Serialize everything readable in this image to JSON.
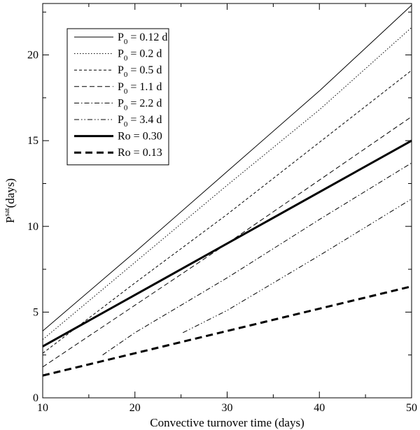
{
  "chart_data": {
    "type": "line",
    "xlabel": "Convective turnover time (days)",
    "ylabel": "P",
    "ylabel_superscript": "sat",
    "ylabel_units": "(days)",
    "xlim": [
      10,
      50
    ],
    "ylim": [
      0,
      23
    ],
    "xticks": [
      10,
      20,
      30,
      40,
      50
    ],
    "yticks": [
      0,
      5,
      10,
      15,
      20
    ],
    "grid": false,
    "legend_position": "top-left",
    "series": [
      {
        "name": "P0 = 0.12 d",
        "legend": {
          "prefix": "P",
          "sub": "0",
          "suffix": " = 0.12 d"
        },
        "style": "solid",
        "weight": "thin",
        "x": [
          10,
          20,
          30,
          40,
          50
        ],
        "y": [
          3.9,
          8.5,
          13.2,
          17.9,
          22.9
        ]
      },
      {
        "name": "P0 = 0.2 d",
        "legend": {
          "prefix": "P",
          "sub": "0",
          "suffix": " = 0.2 d"
        },
        "style": "dotted",
        "weight": "thin",
        "x": [
          10,
          20,
          30,
          40,
          50
        ],
        "y": [
          3.4,
          7.9,
          12.4,
          16.8,
          21.6
        ]
      },
      {
        "name": "P0 = 0.5 d",
        "legend": {
          "prefix": "P",
          "sub": "0",
          "suffix": " = 0.5 d"
        },
        "style": "dashed",
        "weight": "thin",
        "x": [
          10,
          20,
          30,
          40,
          50
        ],
        "y": [
          2.6,
          6.7,
          10.7,
          14.9,
          19.1
        ]
      },
      {
        "name": "P0 = 1.1 d",
        "legend": {
          "prefix": "P",
          "sub": "0",
          "suffix": " = 1.1 d"
        },
        "style": "longdash",
        "weight": "thin",
        "x": [
          10,
          20,
          30,
          40,
          50
        ],
        "y": [
          1.8,
          5.4,
          9.0,
          12.7,
          16.4
        ]
      },
      {
        "name": "P0 = 2.2 d",
        "legend": {
          "prefix": "P",
          "sub": "0",
          "suffix": " = 2.2 d"
        },
        "style": "dashdot",
        "weight": "thin",
        "x": [
          16.5,
          20,
          30,
          40,
          50
        ],
        "y": [
          2.5,
          3.8,
          7.0,
          10.4,
          13.7
        ]
      },
      {
        "name": "P0 = 3.4 d",
        "legend": {
          "prefix": "P",
          "sub": "0",
          "suffix": " = 3.4 d"
        },
        "style": "dashdotdot",
        "weight": "thin",
        "x": [
          25.2,
          30,
          40,
          50
        ],
        "y": [
          3.8,
          5.1,
          8.3,
          11.6
        ]
      },
      {
        "name": "Ro = 0.30",
        "legend": {
          "prefix": "Ro = 0.30",
          "sub": "",
          "suffix": ""
        },
        "style": "solid",
        "weight": "thick",
        "x": [
          10,
          50
        ],
        "y": [
          3.0,
          15.0
        ]
      },
      {
        "name": "Ro = 0.13",
        "legend": {
          "prefix": "Ro = 0.13",
          "sub": "",
          "suffix": ""
        },
        "style": "dashed",
        "weight": "thick",
        "x": [
          10,
          50
        ],
        "y": [
          1.3,
          6.5
        ]
      }
    ]
  }
}
